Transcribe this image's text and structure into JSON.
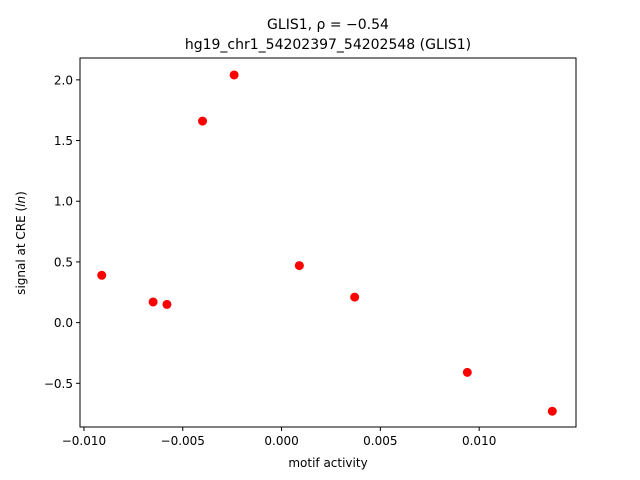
{
  "chart_data": {
    "type": "scatter",
    "title": "GLIS1, ρ = −0.54",
    "subtitle": "hg19_chr1_54202397_54202548 (GLIS1)",
    "xlabel": "motif activity",
    "ylabel": "signal at CRE (ln)",
    "xlim": [
      -0.0102,
      0.0149
    ],
    "ylim": [
      -0.86,
      2.18
    ],
    "xticks": [
      -0.01,
      -0.005,
      0.0,
      0.005,
      0.01
    ],
    "xtick_labels": [
      "−0.010",
      "−0.005",
      "0.000",
      "0.005",
      "0.010"
    ],
    "yticks": [
      -0.5,
      0.0,
      0.5,
      1.0,
      1.5,
      2.0
    ],
    "ytick_labels": [
      "−0.5",
      "0.0",
      "0.5",
      "1.0",
      "1.5",
      "2.0"
    ],
    "grid": false,
    "marker_color": "#ff0000",
    "points": [
      {
        "x": -0.0091,
        "y": 0.39
      },
      {
        "x": -0.0065,
        "y": 0.17
      },
      {
        "x": -0.0058,
        "y": 0.15
      },
      {
        "x": -0.004,
        "y": 1.66
      },
      {
        "x": -0.0024,
        "y": 2.04
      },
      {
        "x": 0.0009,
        "y": 0.47
      },
      {
        "x": 0.0037,
        "y": 0.21
      },
      {
        "x": 0.0094,
        "y": -0.41
      },
      {
        "x": 0.0137,
        "y": -0.73
      }
    ]
  }
}
